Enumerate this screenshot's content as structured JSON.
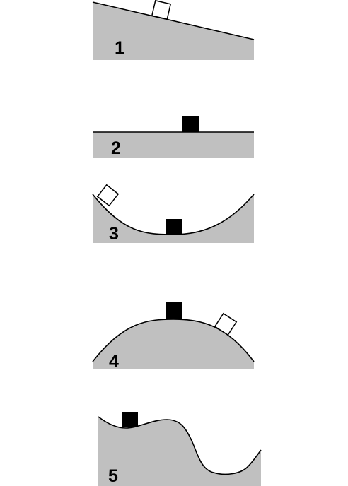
{
  "panels": [
    {
      "label": "1",
      "shape": "incline",
      "blocks": [
        "light"
      ]
    },
    {
      "label": "2",
      "shape": "flat",
      "blocks": [
        "dark"
      ]
    },
    {
      "label": "3",
      "shape": "valley",
      "blocks": [
        "light",
        "dark"
      ]
    },
    {
      "label": "4",
      "shape": "hill",
      "blocks": [
        "dark",
        "light"
      ]
    },
    {
      "label": "5",
      "shape": "wavy",
      "blocks": [
        "dark"
      ]
    }
  ],
  "colors": {
    "ground": "#c0c0c0",
    "outline": "#000000",
    "dark_block": "#000000",
    "light_block": "#ffffff"
  }
}
